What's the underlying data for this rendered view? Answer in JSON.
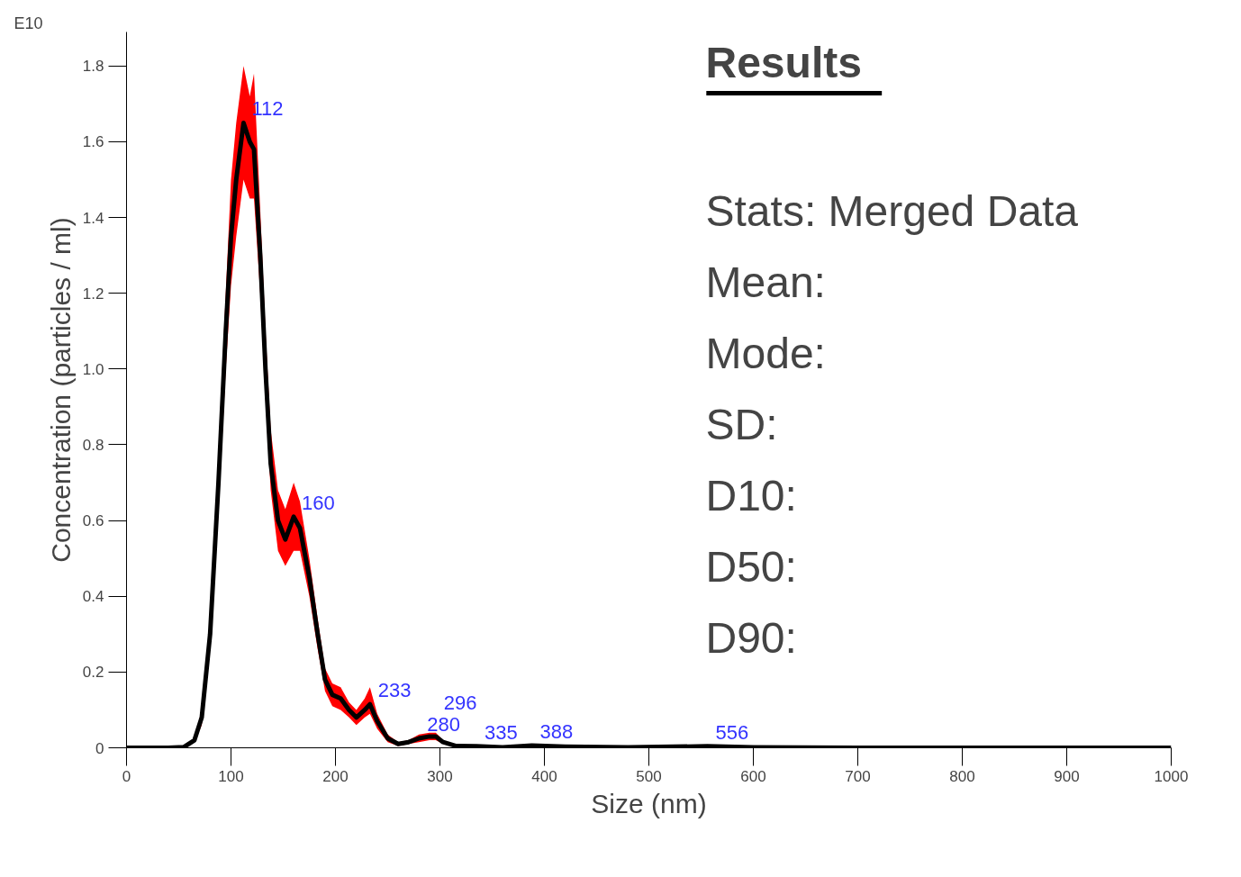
{
  "chart_data": {
    "type": "line",
    "xlabel": "Size (nm)",
    "ylabel": "Concentration (particles / ml)",
    "xlim": [
      0,
      1000
    ],
    "xticks": [
      0,
      100,
      200,
      300,
      400,
      500,
      600,
      700,
      800,
      900,
      1000
    ],
    "ylim": [
      0,
      1.89
    ],
    "yticks": [
      0,
      {
        "value": 0.2,
        "label": "0.2"
      },
      {
        "value": 0.4,
        "label": "0.4"
      },
      {
        "value": 0.6,
        "label": "0.6"
      },
      {
        "value": 0.8,
        "label": "0.8"
      },
      {
        "value": 1,
        "label": "1.0"
      },
      {
        "value": 1.2,
        "label": "1.2"
      },
      {
        "value": 1.4,
        "label": "1.4"
      },
      {
        "value": 1.6,
        "label": "1.6"
      },
      {
        "value": 1.8,
        "label": "1.8"
      }
    ],
    "grid": false,
    "marker": "none",
    "line_style": "solid",
    "series": [
      {
        "color": "#000000",
        "x": [
          0,
          40,
          55,
          65,
          72,
          80,
          88,
          95,
          100,
          105,
          112,
          118,
          122,
          128,
          133,
          138,
          145,
          152,
          160,
          166,
          175,
          183,
          190,
          197,
          205,
          213,
          220,
          228,
          233,
          240,
          250,
          260,
          270,
          280,
          290,
          296,
          303,
          315,
          335,
          360,
          388,
          420,
          480,
          556,
          600,
          700,
          1000
        ],
        "values": [
          0,
          0,
          0.002,
          0.02,
          0.08,
          0.3,
          0.7,
          1.1,
          1.35,
          1.5,
          1.65,
          1.6,
          1.58,
          1.3,
          1.0,
          0.75,
          0.6,
          0.55,
          0.61,
          0.58,
          0.45,
          0.3,
          0.18,
          0.14,
          0.13,
          0.1,
          0.08,
          0.1,
          0.115,
          0.07,
          0.025,
          0.01,
          0.015,
          0.025,
          0.03,
          0.03,
          0.015,
          0.005,
          0.004,
          0.001,
          0.006,
          0.003,
          0.001,
          0.004,
          0.001,
          0,
          0
        ],
        "lower": [
          0,
          0,
          0.001,
          0.015,
          0.06,
          0.26,
          0.62,
          1.0,
          1.22,
          1.35,
          1.5,
          1.45,
          1.45,
          1.2,
          0.92,
          0.68,
          0.52,
          0.48,
          0.52,
          0.52,
          0.4,
          0.26,
          0.15,
          0.11,
          0.1,
          0.08,
          0.06,
          0.08,
          0.09,
          0.05,
          0.015,
          0.005,
          0.01,
          0.015,
          0.02,
          0.02,
          0.01,
          0.003,
          0.002,
          0,
          0.004,
          0.002,
          0,
          0.003,
          0,
          0,
          0
        ],
        "upper": [
          0,
          0,
          0.003,
          0.025,
          0.1,
          0.34,
          0.78,
          1.2,
          1.5,
          1.65,
          1.8,
          1.72,
          1.78,
          1.42,
          1.1,
          0.84,
          0.68,
          0.63,
          0.7,
          0.65,
          0.5,
          0.34,
          0.21,
          0.17,
          0.16,
          0.12,
          0.1,
          0.13,
          0.16,
          0.09,
          0.035,
          0.015,
          0.02,
          0.035,
          0.04,
          0.04,
          0.02,
          0.007,
          0.006,
          0.002,
          0.008,
          0.004,
          0.002,
          0.005,
          0.002,
          0,
          0
        ]
      }
    ],
    "annotations": [
      "E10",
      "Results",
      "Stats: Merged Data",
      "Mean:",
      "Mode:",
      "SD:",
      "D10:",
      "D50:",
      "D90:",
      {
        "text": "112",
        "x": 112,
        "y": 1.65
      },
      {
        "text": "160",
        "x": 160,
        "y": 0.61
      },
      {
        "text": "233",
        "x": 233,
        "y": 0.115
      },
      {
        "text": "280",
        "x": 280,
        "y": 0.025
      },
      {
        "text": "296",
        "x": 296,
        "y": 0.03
      },
      {
        "text": "335",
        "x": 335,
        "y": 0.004
      },
      {
        "text": "388",
        "x": 388,
        "y": 0.006
      },
      {
        "text": "556",
        "x": 556,
        "y": 0.004
      }
    ]
  }
}
